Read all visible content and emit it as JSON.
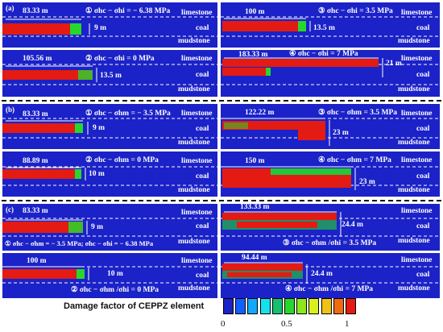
{
  "groups": [
    "(a)",
    "(b)",
    "(c)"
  ],
  "panels": [
    {
      "id": "a1",
      "len": "83.33 m",
      "cond": "① σhc − σhi = − 6.38 MPa",
      "height": "9 m",
      "layers": [
        "limestone",
        "coal",
        "mudstone"
      ]
    },
    {
      "id": "a2",
      "len": "100 m",
      "cond": "③ σhc − σhi = 3.5 MPa",
      "height": "13.5 m",
      "layers": [
        "limestone",
        "coal",
        "mudstone"
      ]
    },
    {
      "id": "a3",
      "len": "105.56 m",
      "cond": "② σhc − σhi = 0 MPa",
      "height": "13.5 m",
      "layers": [
        "limestone",
        "coal",
        "mudstone"
      ]
    },
    {
      "id": "a4",
      "len": "183.33 m",
      "cond": "④ σhc − σhi = 7 MPa",
      "height": "21 m",
      "layers": [
        "limestone",
        "coal",
        "mudstone"
      ]
    },
    {
      "id": "b1",
      "len": "83.33 m",
      "cond": "① σhc − σhm = − 3.5 MPa",
      "height": "9 m",
      "layers": [
        "limestone",
        "coal",
        "mudstone"
      ]
    },
    {
      "id": "b2",
      "len": "122.22 m",
      "cond": "③ σhc − σhm = 3.5 MPa",
      "height": "23 m",
      "layers": [
        "limestone",
        "coal",
        "mudstone"
      ]
    },
    {
      "id": "b3",
      "len": "88.89 m",
      "cond": "② σhc − σhm = 0 MPa",
      "height": "10 m",
      "layers": [
        "limestone",
        "coal",
        "mudstone"
      ]
    },
    {
      "id": "b4",
      "len": "150 m",
      "cond": "④ σhc − σhm = 7 MPa",
      "height": "23 m",
      "layers": [
        "limestone",
        "coal",
        "mudstone"
      ]
    },
    {
      "id": "c1",
      "len": "83.33 m",
      "cond": "① σhc − σhm = − 3.5 MPa; σhc − σhi = − 6.38 MPa",
      "height": "9 m",
      "layers": [
        "limestone",
        "coal",
        "mudstone"
      ]
    },
    {
      "id": "c2",
      "len": "133.33 m",
      "cond": "③ σhc − σhm /σhi = 3.5 MPa",
      "height": "24.4 m",
      "layers": [
        "limestone",
        "coal",
        "mudstone"
      ]
    },
    {
      "id": "c3",
      "len": "100 m",
      "cond": "② σhc − σhm /σhi = 0 MPa",
      "height": "10 m",
      "layers": [
        "limestone",
        "coal",
        "mudstone"
      ]
    },
    {
      "id": "c4",
      "len": "94.44 m",
      "cond": "④ σhc − σhm /σhi = 7 MPa",
      "height": "24.4 m",
      "layers": [
        "limestone",
        "coal",
        "mudstone"
      ]
    }
  ],
  "legend": {
    "title": "Damage factor of CEPPZ element",
    "colors": [
      "#1a22c8",
      "#1060ff",
      "#12a8ff",
      "#17e0ea",
      "#16c070",
      "#27d82a",
      "#8be81c",
      "#d8f01d",
      "#f0c214",
      "#f06a10",
      "#e31b12"
    ],
    "ticks": [
      "0",
      "0.5",
      "1"
    ]
  }
}
